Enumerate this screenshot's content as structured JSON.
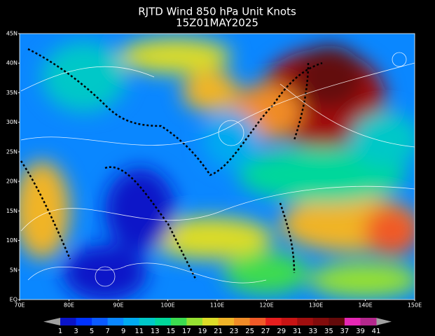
{
  "header": {
    "title": "RJTD Wind 850 hPa Unit Knots",
    "subtitle": "15Z01MAY2025"
  },
  "lat_labels": [
    "45N",
    "40N",
    "35N",
    "30N",
    "25N",
    "20N",
    "15N",
    "10N",
    "5N",
    "EQ"
  ],
  "lon_labels": [
    "70E",
    "80E",
    "90E",
    "100E",
    "110E",
    "120E",
    "130E",
    "140E",
    "150E"
  ],
  "colorbar": {
    "labels": [
      "1",
      "3",
      "5",
      "7",
      "9",
      "11",
      "13",
      "15",
      "17",
      "19",
      "21",
      "23",
      "25",
      "27",
      "29",
      "31",
      "33",
      "35",
      "37",
      "39",
      "41"
    ],
    "colors": [
      "#0a14c8",
      "#0032ff",
      "#0a5aff",
      "#0a87ff",
      "#00aaf0",
      "#00c8c8",
      "#00d79b",
      "#3cdc50",
      "#96e132",
      "#dcdc28",
      "#f0b428",
      "#f08c28",
      "#f05a28",
      "#e61e1e",
      "#c81414",
      "#a00f0f",
      "#820c0c",
      "#640a0a",
      "#e628b4",
      "#b4288c"
    ],
    "end_color": "#a0a0a0"
  }
}
